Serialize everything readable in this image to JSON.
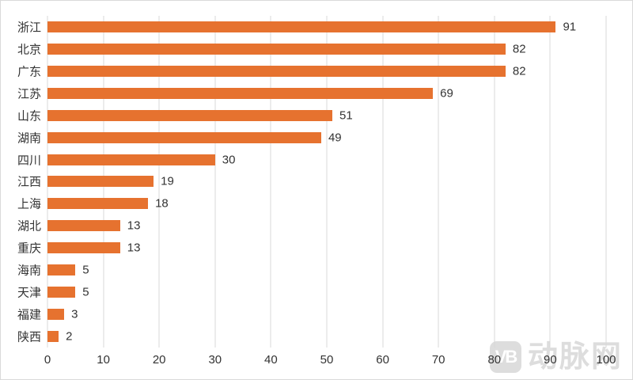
{
  "chart_data": {
    "type": "bar",
    "orientation": "horizontal",
    "title": "",
    "xlabel": "",
    "ylabel": "",
    "categories": [
      "浙江",
      "北京",
      "广东",
      "江苏",
      "山东",
      "湖南",
      "四川",
      "江西",
      "上海",
      "湖北",
      "重庆",
      "海南",
      "天津",
      "福建",
      "陕西"
    ],
    "values": [
      91,
      82,
      82,
      69,
      51,
      49,
      30,
      19,
      18,
      13,
      13,
      5,
      5,
      3,
      2
    ],
    "xlim": [
      0,
      100
    ],
    "x_ticks": [
      0,
      10,
      20,
      30,
      40,
      50,
      60,
      70,
      80,
      90,
      100
    ],
    "grid": "vertical-on",
    "legend": "none",
    "data_labels": true,
    "bar_color": "#e6722f",
    "gridline_color": "#d9d9d9",
    "label_color": "#333333"
  },
  "watermark": {
    "logo_text": "VB",
    "brand_text": "动脉网",
    "color": "#d8d8d8"
  }
}
